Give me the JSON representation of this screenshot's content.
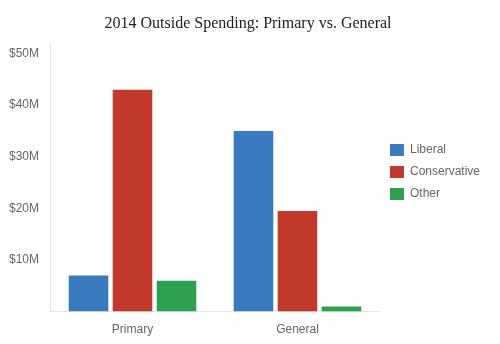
{
  "chart_data": {
    "type": "bar",
    "title": "2014 Outside Spending: Primary vs. General",
    "categories": [
      "Primary",
      "General"
    ],
    "series": [
      {
        "name": "Liberal",
        "color": "#3a7bbf",
        "values": [
          7000000,
          35000000
        ]
      },
      {
        "name": "Conservative",
        "color": "#c0392b",
        "values": [
          43000000,
          19500000
        ]
      },
      {
        "name": "Other",
        "color": "#2e9e4f",
        "values": [
          6000000,
          1000000
        ]
      }
    ],
    "ylim": [
      0,
      52000000
    ],
    "yticks": [
      {
        "value": 10000000,
        "label": "$10M"
      },
      {
        "value": 20000000,
        "label": "$20M"
      },
      {
        "value": 30000000,
        "label": "$30M"
      },
      {
        "value": 40000000,
        "label": "$40M"
      },
      {
        "value": 50000000,
        "label": "$50M"
      }
    ],
    "grid": false,
    "legend": "right"
  }
}
